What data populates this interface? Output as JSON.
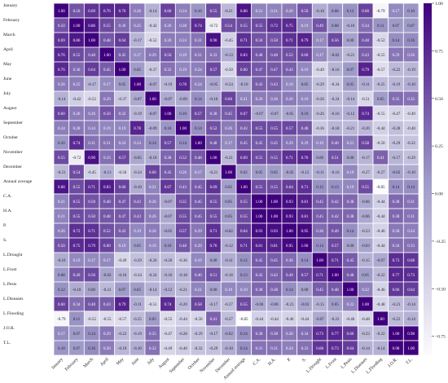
{
  "chart_data": {
    "type": "heatmap",
    "labels": [
      "January",
      "February",
      "March",
      "April",
      "May",
      "June",
      "July",
      "August",
      "September",
      "October",
      "November",
      "December",
      "Annual average",
      "C.A.",
      "H.A.",
      "P.",
      "S.",
      "L.Drought",
      "L.Frost",
      "L.Pests",
      "L.Diseases",
      "L.Flooding",
      "J.O.R.",
      "T.L."
    ],
    "values": [
      [
        1.0,
        0.5,
        0.69,
        0.76,
        0.76,
        0.26,
        -0.14,
        0.6,
        0.24,
        0.1,
        0.55,
        -0.21,
        0.88,
        0.21,
        0.21,
        0.26,
        0.5,
        -0.1,
        0.08,
        0.12,
        0.6,
        -0.79,
        0.17,
        0.1
      ],
      [
        0.5,
        1.0,
        0.86,
        0.55,
        0.36,
        0.25,
        -0.42,
        0.26,
        0.28,
        0.74,
        -0.72,
        0.54,
        0.55,
        0.55,
        0.72,
        0.75,
        0.19,
        0.49,
        0.08,
        -0.1,
        0.34,
        0.11,
        0.07,
        0.07
      ],
      [
        0.69,
        0.86,
        1.0,
        0.48,
        0.64,
        -0.17,
        -0.52,
        0.26,
        0.24,
        0.31,
        0.9,
        -0.45,
        0.71,
        0.5,
        0.5,
        0.71,
        0.79,
        0.17,
        0.56,
        0.0,
        0.48,
        -0.52,
        0.14,
        0.16
      ],
      [
        0.76,
        0.55,
        0.48,
        1.0,
        0.45,
        0.17,
        0.29,
        0.5,
        0.19,
        0.31,
        0.33,
        -0.13,
        0.83,
        0.48,
        0.48,
        0.52,
        0.6,
        0.17,
        -0.02,
        -0.21,
        0.43,
        -0.55,
        0.29,
        0.26
      ],
      [
        0.76,
        0.36,
        0.64,
        0.45,
        1.0,
        0.05,
        -0.37,
        0.32,
        0.19,
        0.24,
        0.57,
        -0.5,
        0.6,
        0.47,
        0.47,
        0.43,
        0.19,
        -0.49,
        -0.16,
        0.07,
        0.79,
        -0.57,
        -0.22,
        -0.19
      ],
      [
        0.26,
        0.25,
        -0.17,
        0.17,
        0.05,
        1.0,
        -0.07,
        -0.19,
        0.78,
        0.24,
        -0.05,
        -0.24,
        -0.1,
        0.43,
        0.43,
        0.19,
        0.05,
        -0.29,
        -0.34,
        0.05,
        -0.11,
        -0.25,
        -0.19,
        -0.1
      ],
      [
        -0.14,
        -0.42,
        -0.52,
        0.29,
        -0.37,
        -0.07,
        1.0,
        -0.07,
        -0.09,
        0.14,
        -0.1,
        0.6,
        0.21,
        0.26,
        0.26,
        0.26,
        0.19,
        -0.26,
        -0.24,
        -0.14,
        -0.51,
        0.05,
        0.35,
        0.32
      ],
      [
        0.6,
        0.26,
        0.26,
        0.5,
        0.32,
        -0.19,
        -0.07,
        1.0,
        0.1,
        0.57,
        0.38,
        0.45,
        0.67,
        -0.07,
        -0.07,
        -0.05,
        0.1,
        -0.26,
        -0.16,
        -0.12,
        0.74,
        -0.55,
        -0.47,
        -0.49
      ],
      [
        0.24,
        0.28,
        0.24,
        0.19,
        0.19,
        0.78,
        -0.09,
        0.1,
        1.0,
        0.14,
        0.52,
        0.26,
        0.43,
        0.55,
        0.55,
        0.57,
        0.48,
        -0.36,
        -0.18,
        -0.21,
        -0.2,
        -0.44,
        -0.28,
        -0.4
      ],
      [
        0.1,
        0.74,
        0.31,
        0.31,
        0.24,
        0.24,
        0.14,
        0.57,
        0.14,
        1.0,
        0.48,
        0.17,
        0.45,
        0.45,
        0.45,
        0.29,
        0.29,
        0.19,
        0.4,
        0.21,
        0.58,
        -0.5,
        -0.29,
        -0.32
      ],
      [
        0.55,
        -0.72,
        0.9,
        0.33,
        0.57,
        -0.05,
        -0.1,
        0.38,
        0.52,
        0.48,
        1.0,
        -0.21,
        0.69,
        0.55,
        0.55,
        0.71,
        0.76,
        0.0,
        0.51,
        0.0,
        -0.17,
        0.41,
        -0.17,
        -0.29
      ],
      [
        -0.21,
        0.54,
        -0.45,
        -0.13,
        -0.5,
        -0.24,
        0.6,
        0.45,
        0.26,
        0.17,
        -0.21,
        1.0,
        0.02,
        0.05,
        0.05,
        -0.02,
        -0.12,
        -0.11,
        -0.16,
        0.19,
        -0.27,
        -0.27,
        -0.02,
        -0.1
      ],
      [
        0.88,
        0.55,
        0.71,
        0.83,
        0.6,
        -0.1,
        0.21,
        0.67,
        0.43,
        0.45,
        0.69,
        0.02,
        1.0,
        0.55,
        0.55,
        0.64,
        0.71,
        0.12,
        0.13,
        0.19,
        0.55,
        -0.85,
        0.14,
        0.14
      ],
      [
        0.21,
        0.55,
        0.5,
        0.48,
        0.47,
        0.43,
        0.26,
        -0.07,
        0.55,
        0.45,
        0.55,
        0.05,
        0.55,
        1.0,
        1.0,
        0.93,
        0.81,
        0.45,
        0.42,
        0.38,
        -0.06,
        -0.44,
        0.38,
        0.31
      ],
      [
        0.21,
        0.55,
        0.5,
        0.48,
        0.47,
        0.43,
        0.26,
        -0.07,
        0.55,
        0.45,
        0.55,
        0.05,
        0.55,
        1.0,
        1.0,
        0.93,
        0.81,
        0.45,
        0.42,
        0.38,
        -0.06,
        -0.44,
        0.38,
        0.31
      ],
      [
        0.26,
        0.72,
        0.71,
        0.52,
        0.43,
        0.19,
        0.26,
        -0.05,
        0.57,
        0.29,
        0.71,
        -0.02,
        0.64,
        0.93,
        0.93,
        1.0,
        0.95,
        0.36,
        0.49,
        0.14,
        -0.23,
        -0.46,
        0.28,
        0.24
      ],
      [
        0.5,
        0.75,
        0.79,
        0.6,
        0.19,
        0.05,
        0.19,
        0.1,
        0.48,
        0.29,
        0.76,
        -0.12,
        0.71,
        0.81,
        0.81,
        0.95,
        1.0,
        0.14,
        0.57,
        0.0,
        -0.03,
        -0.44,
        0.34,
        0.33
      ],
      [
        -0.1,
        0.19,
        0.17,
        0.17,
        -0.49,
        -0.29,
        -0.26,
        -0.26,
        -0.36,
        0.19,
        0.0,
        -0.11,
        0.12,
        0.45,
        0.45,
        0.36,
        0.14,
        1.0,
        0.71,
        0.45,
        -0.15,
        -0.07,
        0.73,
        0.68
      ],
      [
        0.08,
        0.49,
        0.56,
        -0.02,
        -0.16,
        -0.34,
        -0.24,
        -0.16,
        -0.18,
        0.4,
        0.51,
        -0.16,
        0.13,
        0.42,
        0.42,
        0.49,
        0.57,
        0.71,
        1.0,
        0.48,
        0.05,
        -0.22,
        0.77,
        0.73
      ],
      [
        0.12,
        -0.1,
        0.0,
        -0.21,
        0.07,
        0.05,
        -0.14,
        -0.12,
        -0.21,
        0.21,
        0.0,
        0.19,
        0.19,
        0.38,
        0.38,
        0.14,
        0.0,
        0.45,
        0.48,
        1.0,
        0.22,
        -0.46,
        0.66,
        0.64
      ],
      [
        0.6,
        0.34,
        0.48,
        0.43,
        0.79,
        -0.11,
        -0.51,
        0.74,
        -0.2,
        0.58,
        -0.17,
        -0.27,
        0.55,
        -0.06,
        -0.06,
        -0.23,
        -0.03,
        -0.15,
        0.05,
        0.22,
        1.0,
        -0.48,
        -0.23,
        -0.14
      ],
      [
        -0.79,
        0.11,
        -0.52,
        -0.55,
        -0.57,
        -0.25,
        0.05,
        -0.55,
        -0.44,
        -0.5,
        0.41,
        -0.27,
        -0.85,
        -0.44,
        -0.44,
        -0.46,
        -0.44,
        -0.07,
        -0.22,
        -0.46,
        -0.48,
        1.0,
        -0.22,
        -0.14
      ],
      [
        0.17,
        0.07,
        0.14,
        0.29,
        -0.22,
        -0.19,
        0.35,
        -0.47,
        -0.28,
        -0.29,
        -0.17,
        -0.02,
        0.14,
        0.38,
        0.38,
        0.28,
        0.34,
        0.73,
        0.77,
        0.66,
        -0.23,
        -0.22,
        1.0,
        0.98
      ],
      [
        0.1,
        0.07,
        0.16,
        0.26,
        -0.19,
        -0.1,
        0.32,
        -0.49,
        -0.4,
        -0.32,
        -0.29,
        -0.1,
        0.14,
        0.31,
        0.31,
        0.24,
        0.33,
        0.68,
        0.73,
        0.64,
        -0.14,
        -0.14,
        0.98,
        1.0
      ]
    ],
    "colorbar": {
      "min": -0.85,
      "max": 1.0,
      "ticks": [
        1.0,
        0.75,
        0.5,
        0.25,
        0.0,
        -0.25,
        -0.5,
        -0.75
      ]
    },
    "colors": {
      "low": "#fcfbfd",
      "mid": "#9e9ac8",
      "high": "#3f007d"
    },
    "annotations": true
  }
}
